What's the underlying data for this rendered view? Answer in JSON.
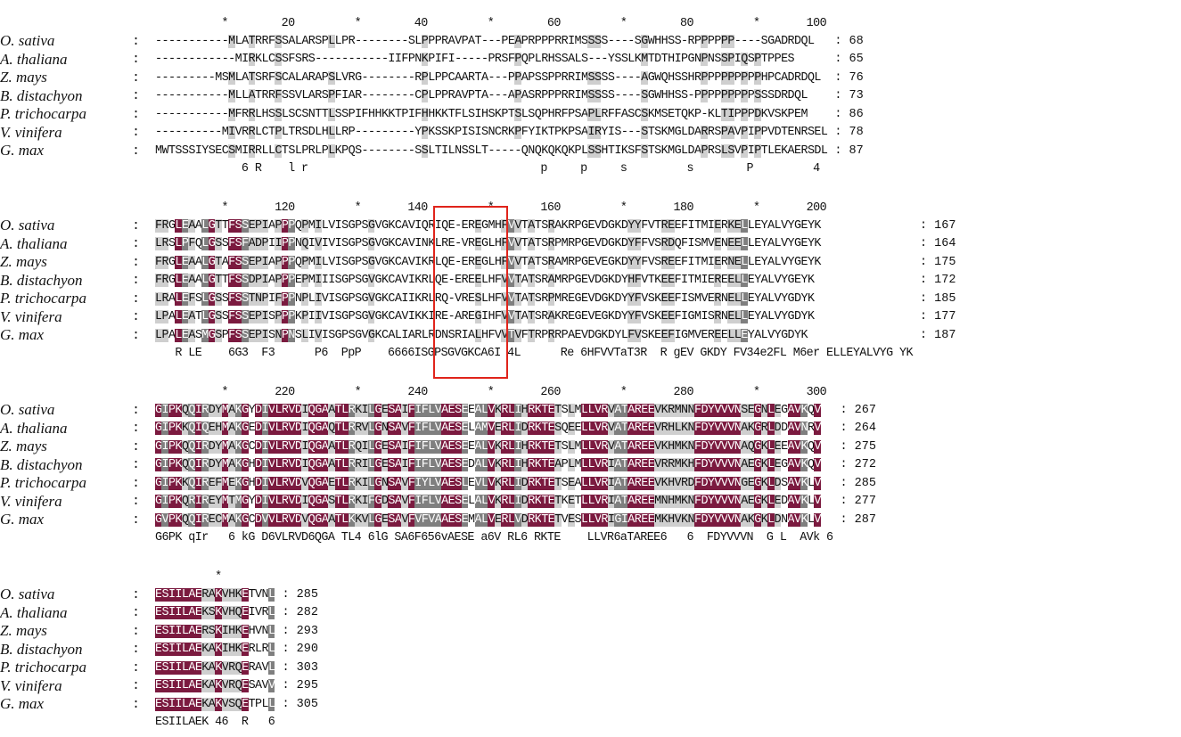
{
  "alignment": {
    "species": [
      "O. sativa",
      "A. thaliana",
      "Z. mays",
      "B. distachyon",
      "P. trichocarpa",
      "V. vinifera",
      "G. max"
    ],
    "shading_colors": {
      "identical": "#7b1a3f",
      "high_similarity": "#7f7f7f",
      "low_similarity": "#cfcfcf"
    },
    "highlight_box_color": "#e0241b",
    "blocks": [
      {
        "ruler": "          *        20         *        40         *        60         *        80         *       100",
        "rows": [
          {
            "seq": "-----------MLATRRFSSALARSPLLPR--------SLPPPRAVPAT---PEAPRPPPRRIMSSSS----SGWHHSS-RPPPPPP----SGADRDQL",
            "end": "68"
          },
          {
            "seq": "------------MIRKLCSSFSRS-----------IIFPNKPIFI-----PRSFPQPLRHSSALS---YSSLKMTDTHIPGNPNSSPIQSPTPPES",
            "end": "65"
          },
          {
            "seq": "---------MSMLATSRFSCALARAPSLVRG--------RPLPPCAARTA---PPAPSSPPRRIMSSSS----AGWQHSSHRPPPPPPPPPHPCADRDQL",
            "end": "76"
          },
          {
            "seq": "-----------MLLATRRFSSVLARSPFIAR--------CPLPPRAVPTA---APASRPPPRRIMSSSS----SGWHHSS-PPPPPPPPPSSSDRDQL",
            "end": "73"
          },
          {
            "seq": "-----------MFRRLHSSLSCSNTTLSSPIFHHKKTPIFHHKKTFLSIHSKPTSLSQPHRFPSAPLRFFASCSKMSETQKP-KLTIPPPDKVSKPEM",
            "end": "86"
          },
          {
            "seq": "----------MIVRRLCTPLTRSDLHLLRP---------YPKSSKPISISNCRKPFYIKTPKPSAIRYIS---STSKMGLDARRSPAVPIPPVDTENRSEL",
            "end": "78"
          },
          {
            "seq": "MWTSSSIYSECSMIRRLLCTSLPRLPLKPQS--------SSLTILNSSLT-----QNQKQKQKPLSSHTIKSFSTSKMGLDAPRSLSVPIPTLEKAERSDL",
            "end": "87"
          }
        ],
        "consensus": "             6 R    l r                                   p     p     s         s        P         4"
      },
      {
        "ruler": "          *       120         *       140         *       160         *       180         *       200",
        "rows": [
          {
            "seq": "FRGLEAALGTTFSSEPIAPPPQPMILVISGPSGVGKCAVIQRIQE-EREGMHFVVTATSRAKRPGEVDGKDYYFVTREEFITMIERKELLEYALVYGEYK",
            "end": "167"
          },
          {
            "seq": "LRSLPFQLGSSFSFADPIIPPNQIVIVISGPSGVGKCAVINKLRE-VREGLHFVVTATSRPMRPGEVDGKDYFFVSRDQFISMVENEELLEYALVYGEYK",
            "end": "164"
          },
          {
            "seq": "FRGLEAALGTAFSSEPIAPPPQPMILVISGPSGVGKCAVIKRLQE-EREGLHFVVTATSRAMRPGEVEGKDYYFVSREEFITMIERNELLEYALVYGEYK",
            "end": "175"
          },
          {
            "seq": "FRGLEAALGTTFSSDPIAPPPEPMIIISGPSGVGKCAVIKRLQE-EREELHFVVTATSRAMRPGEVDGKDYHFVTKEEFITMIEREELLEYALVYGEYK",
            "end": "172"
          },
          {
            "seq": "LRALEFSLGSSFSSTNPIFPPNPLIVISGPSGVGKCAIIKRLRQ-VRESLHFVVTATSRPMREGEVDGKDYYFVSKEEFISMVERNELLEYALVYGDYK",
            "end": "185"
          },
          {
            "seq": "LPALEATLGSSFSSEPISPPPKPIIVISGPSGVGKCAVIKKIRE-AREGIHFVVTATSRAKREGEVEGKDYYFVSKEEFIGMISRNELLEYALVYGDYK",
            "end": "177"
          },
          {
            "seq": "LPALEASMGSPFSSEPISNPNSLIVISGPSGVGKCALIARLRDNSRIALHFVVTVFTRPRRPAEVDGKDYLFVSKEEFIGMVEREELLEYALVYGDYK",
            "end": "187"
          }
        ],
        "consensus": "   R LE    6G3  F3      P6  PpP    6666ISGPSGVGKCA6I 4L      Re 6HFVVTaT3R  R gEV GKDY FV34e2FL M6er ELLEYALVYG YK"
      },
      {
        "ruler": "          *       220         *       240         *       260         *       280         *       300",
        "rows": [
          {
            "seq": "GIPKQQIRDYMAKGYDIVLRVDIQGAATLRKILGESAIFIFLVAESEEALVKRLIHRKTETSLMLLVRVATAREEVKRMNNFDYVVVNSEGNLEGAVKQV",
            "end": "267"
          },
          {
            "seq": "GIPKKQIQEHMAKGEDIVLRVDIQGAQTLRRVLGNSAVFIFLVAESELAMVERLIDRKTESQEELLVRVATAREEVRHLKNFDYVVVNAKGRLDDAVNRV",
            "end": "264"
          },
          {
            "seq": "GIPKQQIRDYMAKGCDIVLRVDIQGAATLRQILGESAIFIFLVAESEEALVKRLIHRKTETSLMLLVRVATAREEVKHMKNFDYVVVNAQGKLEEAVKQV",
            "end": "275"
          },
          {
            "seq": "GIPKQQIRDYMAKGHDIVLRVDIQGAATLRRILGESAIFIFLVAESEDALVKRLIHRKTEAPLMLLVRIATAREEVRRMKHFDYVVVNAEGKLEGAVKQV",
            "end": "272"
          },
          {
            "seq": "GIPKKQIREFMEKGHDIVLRVDVQGAETLRKILGNSAVFIYLVAESLEVLVKRLIDRKTETSEALLVRIATAREEVKHVRDFDYVVVNGEGKLDSAVKLV",
            "end": "285"
          },
          {
            "seq": "GIPKQRIREYMTMGYDIVLRVDIQGASTLRKIFGDSAVFIFLVAESELALVKRLIDRKTETKETLLVRIATAREEMNHMKNFDYVVVNAEGKLEDAVKLV",
            "end": "277"
          },
          {
            "seq": "GVPKQQIRECMAKGCDVVLRVDVQGAATLKKVLGESAVFVFVAAESEMALVERLVDRKTETVESLLVRIGIAREEMKHVKNFDYVVVNAKGKLDNAVKLV",
            "end": "287"
          }
        ],
        "consensus": "G6PK qIr   6 kG D6VLRVD6QGA TL4 6lG SA6F656vAESE a6V RL6 RKTE    LLVR6aTAREE6   6  FDYVVVN  G L  AVk 6"
      },
      {
        "ruler": "         *",
        "rows": [
          {
            "seq": "ESIILAERAKVHKETVNL",
            "end": "285"
          },
          {
            "seq": "ESIILAEKSKVHQEIVRL",
            "end": "282"
          },
          {
            "seq": "ESIILAERSKIHKEHVNL",
            "end": "293"
          },
          {
            "seq": "ESIILAEKAKIHKERLRL",
            "end": "290"
          },
          {
            "seq": "ESIILAEKAKVRQERAVL",
            "end": "303"
          },
          {
            "seq": "ESIILAEKAKVRQESAVV",
            "end": "295"
          },
          {
            "seq": "ESIILAEKAKVSQETPLL",
            "end": "305"
          }
        ],
        "consensus": "ESIILAEK 46  R   6"
      }
    ]
  }
}
